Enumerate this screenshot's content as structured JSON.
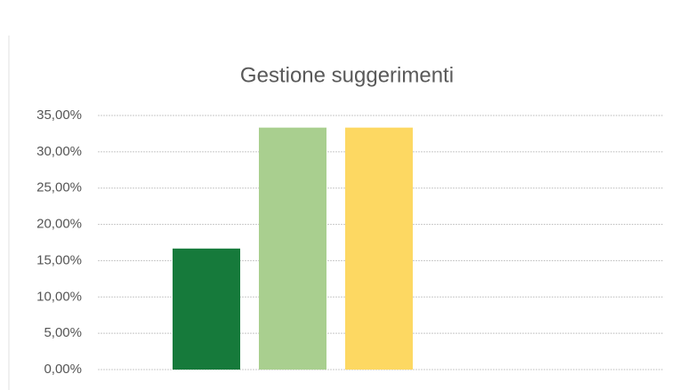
{
  "chart_data": {
    "type": "bar",
    "title": "Gestione suggerimenti",
    "categories": [
      null,
      null,
      null
    ],
    "values": [
      16.67,
      33.33,
      33.33
    ],
    "colors": [
      "#167a3b",
      "#a9cf8f",
      "#fdd862"
    ],
    "ylim": [
      0,
      35
    ],
    "yticks": [
      {
        "value": 0,
        "label": "0,00%"
      },
      {
        "value": 5,
        "label": "5,00%"
      },
      {
        "value": 10,
        "label": "10,00%"
      },
      {
        "value": 15,
        "label": "15,00%"
      },
      {
        "value": 20,
        "label": "20,00%"
      },
      {
        "value": 25,
        "label": "25,00%"
      },
      {
        "value": 30,
        "label": "30,00%"
      },
      {
        "value": 35,
        "label": "35,00%"
      }
    ],
    "grid": true
  }
}
